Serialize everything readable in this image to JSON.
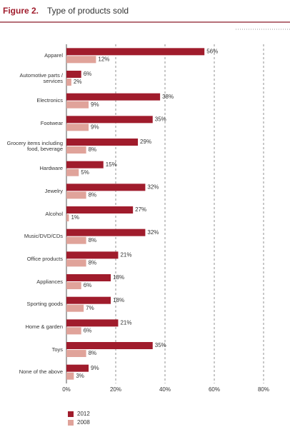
{
  "chart_data": {
    "type": "bar",
    "orientation": "horizontal",
    "title_label": "Figure 2.",
    "title": "Type of products sold",
    "categories": [
      "Apparel",
      "Automotive parts / services",
      "Electronics",
      "Footwear",
      "Grocery items including food, beverage",
      "Hardware",
      "Jewelry",
      "Alcohol",
      "Music/DVD/CDs",
      "Office products",
      "Appliances",
      "Sporting goods",
      "Home & garden",
      "Toys",
      "None of the above"
    ],
    "series": [
      {
        "name": "2012",
        "color": "#a01c2c",
        "values": [
          56,
          6,
          38,
          35,
          29,
          15,
          32,
          27,
          32,
          21,
          18,
          18,
          21,
          35,
          9
        ],
        "value_labels": [
          "56%",
          "6%",
          "38%",
          "35%",
          "29%",
          "15%",
          "32%",
          "27%",
          "32%",
          "21%",
          "18%",
          "18%",
          "21%",
          "35%",
          "9%"
        ]
      },
      {
        "name": "2008",
        "color": "#e0a39a",
        "values": [
          12,
          2,
          9,
          9,
          8,
          5,
          8,
          1,
          8,
          8,
          6,
          7,
          6,
          8,
          3
        ],
        "value_labels": [
          "12%",
          "2%",
          "9%",
          "9%",
          "8%",
          "5%",
          "8%",
          "1%",
          "8%",
          "8%",
          "6%",
          "7%",
          "6%",
          "8%",
          "3%"
        ]
      }
    ],
    "xlim": [
      0,
      80
    ],
    "xticks": [
      {
        "value": 0,
        "label": "0%"
      },
      {
        "value": 20,
        "label": "20%"
      },
      {
        "value": 40,
        "label": "40%"
      },
      {
        "value": 60,
        "label": "60%"
      },
      {
        "value": 80,
        "label": "80%"
      }
    ],
    "grid": true
  }
}
